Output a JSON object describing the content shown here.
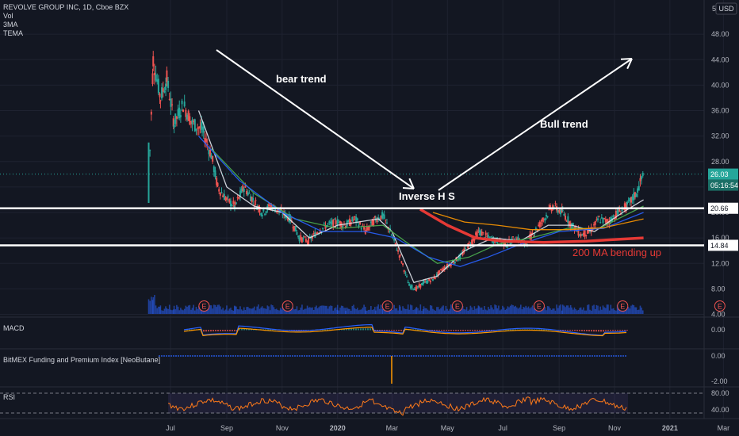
{
  "header": {
    "symbol_line": "REVOLVE GROUP INC, 1D, Cboe BZX",
    "indicators": [
      "Vol",
      "3MA",
      "TEMA"
    ],
    "currency": "USD",
    "scale_mode": "5"
  },
  "price_axis": {
    "ticks": [
      "48.00",
      "44.00",
      "40.00",
      "36.00",
      "32.00",
      "28.00",
      "24.00",
      "20.00",
      "16.00",
      "12.00",
      "8.00",
      "4.00"
    ]
  },
  "badges": {
    "last_price": "26.03",
    "countdown": "05:16:54",
    "resistance": "20.66",
    "support": "14.84"
  },
  "time_axis": [
    "Jul",
    "Sep",
    "Nov",
    "2020",
    "Mar",
    "May",
    "Jul",
    "Sep",
    "Nov",
    "2021",
    "Mar"
  ],
  "annotations": {
    "bear": "bear trend",
    "bull": "Bull trend",
    "ihs": "Inverse H S",
    "ma200": "200 MA bending up"
  },
  "panes": {
    "macd": {
      "label": "MACD",
      "ticks": [
        "0.00"
      ]
    },
    "funding": {
      "label": "BitMEX Funding and Premium Index [NeoButane]",
      "ticks": [
        "0.00",
        "-2.00"
      ]
    },
    "rsi": {
      "label": "RSI",
      "ticks": [
        "80.00",
        "40.00"
      ]
    }
  },
  "earnings_marker": "E",
  "colors": {
    "background": "#131722",
    "up": "#26a69a",
    "down": "#ef5350",
    "ma_white": "#e0e3eb",
    "ma_green": "#4caf50",
    "ma_blue": "#2962ff",
    "ma_orange": "#ff9800",
    "ma_red": "#e53935",
    "volume": "#2962ff",
    "rsi": "#ff7a1a",
    "level_line": "#ffffff"
  },
  "chart_data": {
    "type": "candlestick",
    "title": "REVOLVE GROUP INC, 1D, Cboe BZX",
    "ylabel": "USD",
    "ylim": [
      3,
      50
    ],
    "levels": [
      20.66,
      14.84
    ],
    "last_price": 26.03,
    "close_path": [
      [
        "2019-06-07",
        24.0
      ],
      [
        "2019-06-12",
        44.0
      ],
      [
        "2019-06-20",
        38.0
      ],
      [
        "2019-06-27",
        41.0
      ],
      [
        "2019-07-05",
        34.0
      ],
      [
        "2019-07-15",
        37.0
      ],
      [
        "2019-07-25",
        34.0
      ],
      [
        "2019-08-05",
        33.0
      ],
      [
        "2019-08-15",
        29.0
      ],
      [
        "2019-08-22",
        24.0
      ],
      [
        "2019-09-01",
        22.0
      ],
      [
        "2019-09-10",
        21.0
      ],
      [
        "2019-09-20",
        24.0
      ],
      [
        "2019-09-30",
        22.0
      ],
      [
        "2019-10-10",
        20.0
      ],
      [
        "2019-10-20",
        21.0
      ],
      [
        "2019-10-31",
        20.0
      ],
      [
        "2019-11-10",
        19.0
      ],
      [
        "2019-11-20",
        16.0
      ],
      [
        "2019-11-30",
        15.5
      ],
      [
        "2019-12-10",
        17.0
      ],
      [
        "2019-12-20",
        18.0
      ],
      [
        "2020-01-01",
        18.5
      ],
      [
        "2020-01-10",
        18.0
      ],
      [
        "2020-01-20",
        19.0
      ],
      [
        "2020-02-01",
        17.0
      ],
      [
        "2020-02-12",
        19.0
      ],
      [
        "2020-02-20",
        19.5
      ],
      [
        "2020-02-28",
        17.0
      ],
      [
        "2020-03-10",
        13.0
      ],
      [
        "2020-03-20",
        8.5
      ],
      [
        "2020-03-28",
        8.0
      ],
      [
        "2020-04-05",
        9.0
      ],
      [
        "2020-04-15",
        9.5
      ],
      [
        "2020-04-25",
        11.0
      ],
      [
        "2020-05-05",
        12.0
      ],
      [
        "2020-05-15",
        13.0
      ],
      [
        "2020-05-25",
        15.0
      ],
      [
        "2020-06-05",
        17.0
      ],
      [
        "2020-06-15",
        16.0
      ],
      [
        "2020-06-25",
        15.5
      ],
      [
        "2020-07-05",
        15.0
      ],
      [
        "2020-07-15",
        16.0
      ],
      [
        "2020-07-25",
        15.0
      ],
      [
        "2020-08-05",
        17.0
      ],
      [
        "2020-08-15",
        19.0
      ],
      [
        "2020-08-25",
        21.0
      ],
      [
        "2020-09-05",
        20.0
      ],
      [
        "2020-09-15",
        18.0
      ],
      [
        "2020-09-25",
        16.5
      ],
      [
        "2020-10-05",
        17.0
      ],
      [
        "2020-10-15",
        19.0
      ],
      [
        "2020-10-25",
        18.5
      ],
      [
        "2020-11-05",
        20.0
      ],
      [
        "2020-11-15",
        21.0
      ],
      [
        "2020-11-25",
        23.0
      ],
      [
        "2020-12-03",
        26.03
      ]
    ],
    "moving_averages": [
      {
        "color": "#e0e3eb",
        "path": [
          [
            "2019-08-01",
            36
          ],
          [
            "2019-09-01",
            24
          ],
          [
            "2019-10-01",
            21
          ],
          [
            "2019-11-01",
            20
          ],
          [
            "2019-12-01",
            16
          ],
          [
            "2020-01-01",
            18
          ],
          [
            "2020-02-15",
            19
          ],
          [
            "2020-03-01",
            17
          ],
          [
            "2020-03-25",
            9
          ],
          [
            "2020-04-20",
            10
          ],
          [
            "2020-05-20",
            14
          ],
          [
            "2020-06-20",
            16
          ],
          [
            "2020-07-20",
            15.5
          ],
          [
            "2020-08-20",
            18
          ],
          [
            "2020-09-15",
            18
          ],
          [
            "2020-10-10",
            17
          ],
          [
            "2020-11-10",
            20
          ],
          [
            "2020-12-03",
            22
          ]
        ]
      },
      {
        "color": "#4caf50",
        "path": [
          [
            "2019-08-15",
            30
          ],
          [
            "2019-10-01",
            23
          ],
          [
            "2019-11-15",
            19
          ],
          [
            "2020-01-01",
            17.5
          ],
          [
            "2020-02-20",
            18
          ],
          [
            "2020-03-20",
            15
          ],
          [
            "2020-04-20",
            12
          ],
          [
            "2020-05-25",
            13
          ],
          [
            "2020-06-25",
            15
          ],
          [
            "2020-08-01",
            16
          ],
          [
            "2020-09-10",
            17.5
          ],
          [
            "2020-10-15",
            17.5
          ],
          [
            "2020-12-03",
            21
          ]
        ]
      },
      {
        "color": "#2962ff",
        "path": [
          [
            "2019-08-01",
            32
          ],
          [
            "2019-09-15",
            25
          ],
          [
            "2019-11-01",
            20
          ],
          [
            "2019-12-15",
            17
          ],
          [
            "2020-02-01",
            17
          ],
          [
            "2020-03-05",
            16
          ],
          [
            "2020-04-10",
            13
          ],
          [
            "2020-05-15",
            11.5
          ],
          [
            "2020-06-15",
            13
          ],
          [
            "2020-07-20",
            15
          ],
          [
            "2020-09-01",
            17
          ],
          [
            "2020-10-20",
            17.5
          ],
          [
            "2020-12-03",
            20
          ]
        ]
      },
      {
        "color": "#ff9800",
        "path": [
          [
            "2020-04-15",
            20
          ],
          [
            "2020-05-20",
            18.5
          ],
          [
            "2020-06-25",
            18
          ],
          [
            "2020-08-01",
            17.3
          ],
          [
            "2020-09-10",
            17.3
          ],
          [
            "2020-10-20",
            17.6
          ],
          [
            "2020-12-03",
            19
          ]
        ]
      },
      {
        "color": "#e53935",
        "path": [
          [
            "2020-04-01",
            20.5
          ],
          [
            "2020-05-01",
            18
          ],
          [
            "2020-06-01",
            16
          ],
          [
            "2020-07-01",
            15.5
          ],
          [
            "2020-08-15",
            15.3
          ],
          [
            "2020-10-01",
            15.5
          ],
          [
            "2020-12-03",
            16
          ]
        ]
      }
    ]
  }
}
